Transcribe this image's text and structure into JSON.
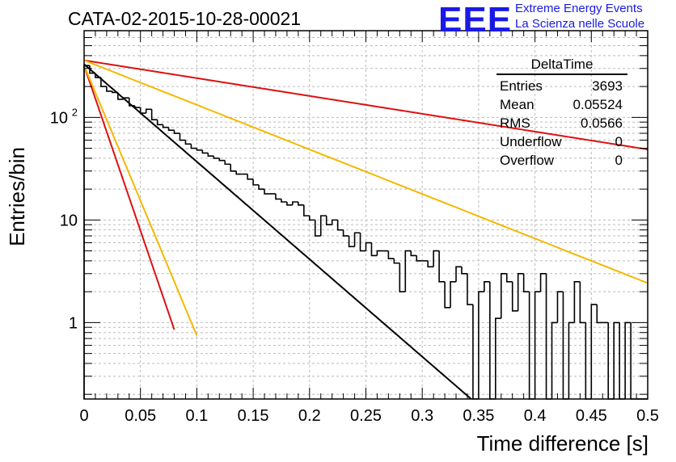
{
  "title": "CATA-02-2015-10-28-00021",
  "logo": {
    "mark": "EEE",
    "line1": "Extreme Energy Events",
    "line2": "La Scienza nelle Scuole",
    "color": "#1a1ae6"
  },
  "stats": {
    "name": "DeltaTime",
    "rows": [
      {
        "label": "Entries",
        "value": "3693"
      },
      {
        "label": "Mean",
        "value": "0.05524"
      },
      {
        "label": "RMS",
        "value": "0.0566"
      },
      {
        "label": "Underflow",
        "value": "0"
      },
      {
        "label": "Overflow",
        "value": "0"
      }
    ]
  },
  "chart_data": {
    "type": "line",
    "xlabel": "Time difference [s]",
    "ylabel": "Entries/bin",
    "xlim": [
      0,
      0.5
    ],
    "ylim": [
      0.18,
      700
    ],
    "yscale": "log",
    "grid": true,
    "x_ticks": [
      "0",
      "0.05",
      "0.1",
      "0.15",
      "0.2",
      "0.25",
      "0.3",
      "0.35",
      "0.4",
      "0.45",
      "0.5"
    ],
    "y_ticks": [
      {
        "value": 1,
        "label": "1"
      },
      {
        "value": 10,
        "label": "10"
      },
      {
        "value": 100,
        "label": "10",
        "exp": "2"
      }
    ],
    "histogram": {
      "bin_width": 0.005,
      "color": "#000000",
      "values": [
        320,
        270,
        245,
        200,
        180,
        175,
        150,
        155,
        130,
        125,
        110,
        120,
        95,
        85,
        80,
        75,
        70,
        60,
        55,
        50,
        48,
        45,
        42,
        40,
        38,
        35,
        30,
        28,
        28,
        25,
        22,
        20,
        18,
        18,
        16,
        15,
        14,
        15,
        14,
        11,
        10,
        7,
        11,
        9,
        10,
        8,
        7,
        5.5,
        7.5,
        5,
        6,
        4.5,
        5,
        5,
        4.2,
        3.8,
        2,
        5,
        4.5,
        4,
        4,
        3.5,
        5,
        2.5,
        1.4,
        2.5,
        3.5,
        3,
        1.5,
        0.15,
        2,
        2.5,
        0.15,
        1.1,
        3,
        2.5,
        1.3,
        3,
        2,
        0.15,
        2,
        3,
        0.15,
        1,
        2,
        0.15,
        1,
        2.5,
        1,
        0.15,
        1.5,
        1,
        1,
        0.15,
        1,
        0.15,
        1,
        0.15,
        0.15,
        0.15
      ]
    },
    "fits": [
      {
        "color": "#000000",
        "y0": 330,
        "tau": 0.0457,
        "x_start": 0,
        "x_end": 0.41
      },
      {
        "color": "#dd1111",
        "y0": 360,
        "tau": 0.25,
        "x_start": 0,
        "x_end": 0.5
      },
      {
        "color": "#f5b800",
        "y0": 360,
        "tau": 0.1,
        "x_start": 0,
        "x_end": 0.5
      },
      {
        "color": "#dd1111",
        "y0": 320,
        "tau": 0.0135,
        "x_start": 0,
        "x_end": 0.08
      },
      {
        "color": "#f5b800",
        "y0": 320,
        "tau": 0.0165,
        "x_start": 0,
        "x_end": 0.1
      }
    ]
  }
}
